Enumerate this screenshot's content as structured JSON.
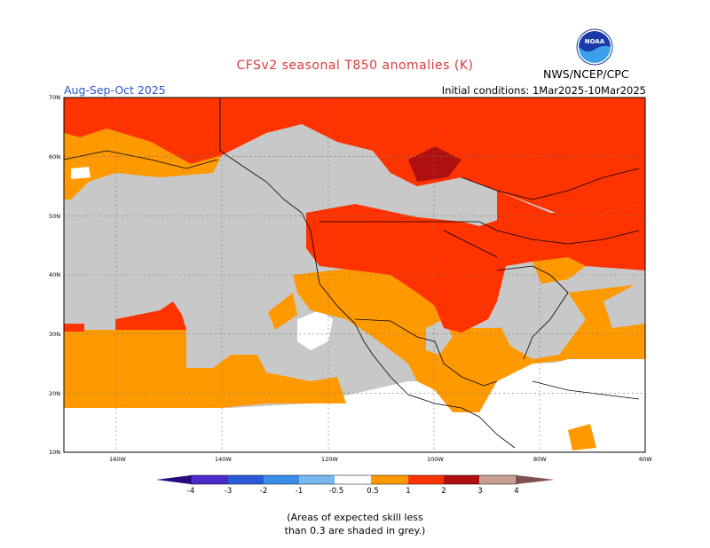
{
  "title": "CFSv2 seasonal T850 anomalies (K)",
  "season": "Aug-Sep-Oct 2025",
  "initial_conditions": "Initial conditions: 1Mar2025-10Mar2025",
  "agency": "NWS/NCEP/CPC",
  "logo": {
    "text": "NOAA",
    "icon": "noaa-logo-icon"
  },
  "axes": {
    "lat_labels": [
      "70N",
      "60N",
      "50N",
      "40N",
      "30N",
      "20N",
      "10N"
    ],
    "lon_labels": [
      "160W",
      "140W",
      "120W",
      "100W",
      "80W",
      "60W"
    ]
  },
  "colorbar": {
    "labels": [
      "-4",
      "-3",
      "-2",
      "-1",
      "-0.5",
      "0.5",
      "1",
      "2",
      "3",
      "4"
    ],
    "colors": [
      "#4a2ac8",
      "#2a5ad8",
      "#3a8ee8",
      "#78b8f0",
      "#ffffff",
      "#ff9900",
      "#ff3300",
      "#b01010",
      "#c8a090",
      "#805050"
    ]
  },
  "map_colors": {
    "grey": "#c8c8c8",
    "orange": "#ff9900",
    "red": "#ff3300",
    "dark_red": "#b01010",
    "white": "#ffffff"
  },
  "note_line1": "(Areas of expected skill less",
  "note_line2": "than 0.3 are shaded in grey.)"
}
